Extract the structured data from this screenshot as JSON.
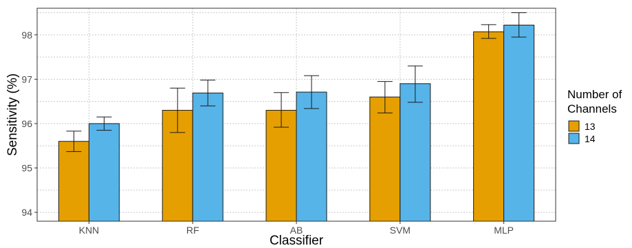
{
  "chart_data": {
    "type": "bar",
    "xlabel": "Classifier",
    "ylabel": "Sensitivity (%)",
    "categories": [
      "KNN",
      "RF",
      "AB",
      "SVM",
      "MLP"
    ],
    "ylim": [
      93.8,
      98.6
    ],
    "yticks": [
      94,
      95,
      96,
      97,
      98
    ],
    "grid": true,
    "legend": {
      "title_lines": [
        "Number of",
        "Channels"
      ],
      "position": "right"
    },
    "series": [
      {
        "name": "13",
        "color": "#E69F00",
        "values": [
          95.6,
          96.3,
          96.3,
          96.6,
          98.07
        ],
        "err_low": [
          95.37,
          95.8,
          95.92,
          96.24,
          97.92
        ],
        "err_high": [
          95.83,
          96.8,
          96.7,
          96.95,
          98.23
        ]
      },
      {
        "name": "14",
        "color": "#56B4E9",
        "values": [
          96.0,
          96.69,
          96.71,
          96.9,
          98.22
        ],
        "err_low": [
          95.85,
          96.4,
          96.34,
          96.48,
          97.95
        ],
        "err_high": [
          96.15,
          96.98,
          97.08,
          97.3,
          98.5
        ]
      }
    ]
  }
}
